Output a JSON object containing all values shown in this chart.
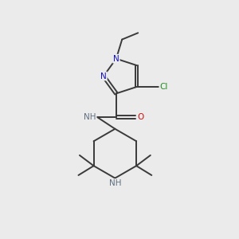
{
  "background_color": "#ebebeb",
  "bond_color": "#3a3a3a",
  "atom_colors": {
    "N": "#1010cc",
    "O": "#cc1010",
    "Cl": "#228B22",
    "NH": "#607080",
    "C": "#000000"
  }
}
